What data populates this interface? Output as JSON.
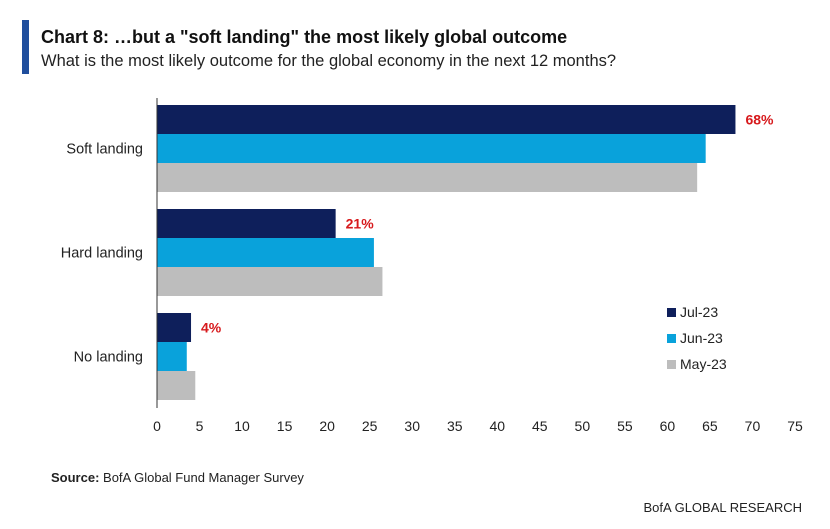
{
  "header": {
    "title": "Chart 8: …but a \"soft landing\" the most likely global outcome",
    "subtitle": "What is the most likely outcome for the global economy in the next 12 months?",
    "accent_color": "#1f4e9d"
  },
  "footer": {
    "source_label": "Source:",
    "source_text": "BofA Global Fund Manager Survey",
    "brand": "BofA GLOBAL RESEARCH"
  },
  "chart_data": {
    "type": "bar",
    "orientation": "horizontal",
    "title": "Chart 8: …but a \"soft landing\" the most likely global outcome",
    "subtitle": "What is the most likely outcome for the global economy in the next 12 months?",
    "categories": [
      "Soft landing",
      "Hard landing",
      "No landing"
    ],
    "series": [
      {
        "name": "Jul-23",
        "color": "#0e1f5b",
        "values": [
          68,
          21,
          4
        ],
        "data_labels": [
          "68%",
          "21%",
          "4%"
        ]
      },
      {
        "name": "Jun-23",
        "color": "#09a2db",
        "values": [
          64.5,
          25.5,
          3.5
        ]
      },
      {
        "name": "May-23",
        "color": "#bdbdbd",
        "values": [
          63.5,
          26.5,
          4.5
        ]
      }
    ],
    "data_label_color": "#d7191c",
    "xlim": [
      0,
      75
    ],
    "xticks": [
      "0",
      "5",
      "10",
      "15",
      "20",
      "25",
      "30",
      "35",
      "40",
      "45",
      "50",
      "55",
      "60",
      "65",
      "70",
      "75"
    ],
    "grid": false,
    "legend_position": "bottom-right"
  }
}
